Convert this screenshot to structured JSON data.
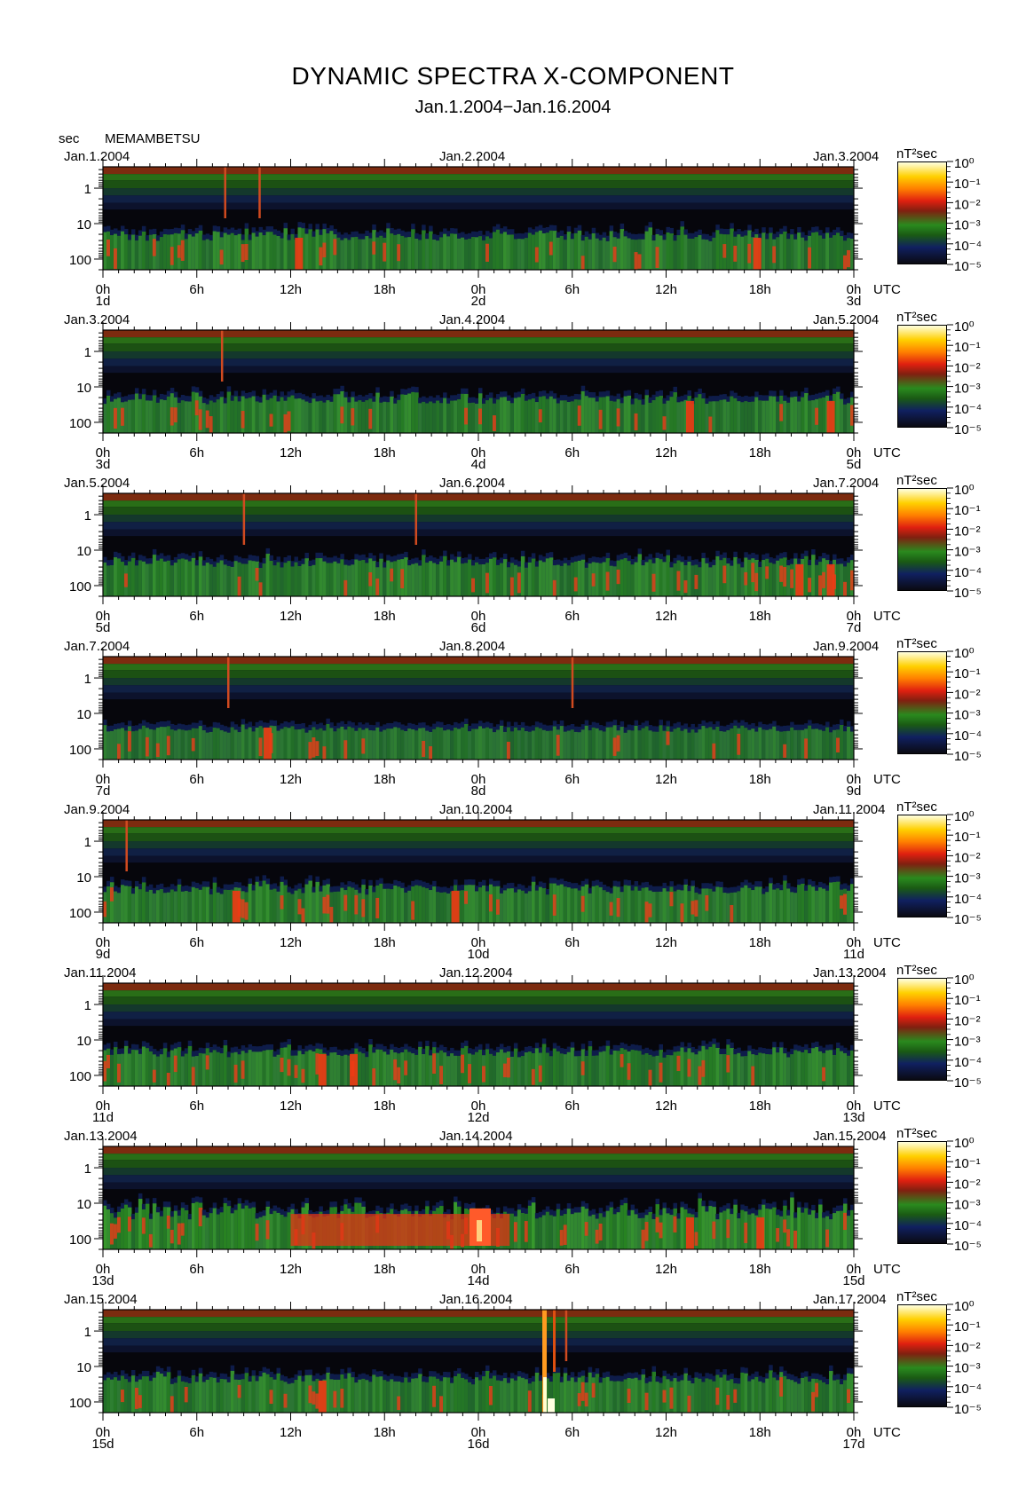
{
  "chart_data": {
    "type": "heatmap",
    "title": "DYNAMIC SPECTRA X-COMPONENT",
    "subtitle": "Jan.1.2004−Jan.16.2004",
    "station": "MEMAMBETSU",
    "y_unit": "sec",
    "x_unit": "UTC",
    "colorbar_unit": "nT²sec",
    "y_scale": "log",
    "y_ticks": [
      "1",
      "10",
      "100"
    ],
    "y_tick_values": [
      1,
      10,
      100
    ],
    "x_tick_labels": [
      "0h",
      "6h",
      "12h",
      "18h",
      "0h",
      "6h",
      "12h",
      "18h",
      "0h"
    ],
    "colorbar_ticks": [
      "10⁰",
      "10⁻¹",
      "10⁻²",
      "10⁻³",
      "10⁻⁴",
      "10⁻⁵"
    ],
    "colorbar_range": [
      1e-05,
      1
    ],
    "colors": [
      "#0a0a12",
      "#142060",
      "#1a6a1a",
      "#3aa82a",
      "#e03010",
      "#ff4020",
      "#ffd000",
      "#ffffe0"
    ],
    "panels": [
      {
        "start_label": "Jan.1.2004",
        "mid_label": "Jan.2.2004",
        "end_label": "Jan.3.2004",
        "day_labels": [
          "1d",
          "2d",
          "3d"
        ],
        "events": [
          {
            "t": 7.8,
            "kind": "spike"
          },
          {
            "t": 10.0,
            "kind": "spike"
          },
          {
            "t": 12.5,
            "kind": "burst"
          },
          {
            "t": 41.8,
            "kind": "burst"
          }
        ],
        "activity": "moderate"
      },
      {
        "start_label": "Jan.3.2004",
        "mid_label": "Jan.4.2004",
        "end_label": "Jan.5.2004",
        "day_labels": [
          "3d",
          "4d",
          "5d"
        ],
        "events": [
          {
            "t": 7.6,
            "kind": "spike"
          },
          {
            "t": 37.5,
            "kind": "burst"
          },
          {
            "t": 46.5,
            "kind": "burst"
          }
        ],
        "activity": "moderate"
      },
      {
        "start_label": "Jan.5.2004",
        "mid_label": "Jan.6.2004",
        "end_label": "Jan.7.2004",
        "day_labels": [
          "5d",
          "6d",
          "7d"
        ],
        "events": [
          {
            "t": 9.0,
            "kind": "spike"
          },
          {
            "t": 20.0,
            "kind": "spike"
          },
          {
            "t": 44.5,
            "kind": "burst"
          },
          {
            "t": 46.5,
            "kind": "burst"
          }
        ],
        "activity": "moderate"
      },
      {
        "start_label": "Jan.7.2004",
        "mid_label": "Jan.8.2004",
        "end_label": "Jan.9.2004",
        "day_labels": [
          "7d",
          "8d",
          "9d"
        ],
        "events": [
          {
            "t": 8.0,
            "kind": "spike"
          },
          {
            "t": 10.5,
            "kind": "burst"
          },
          {
            "t": 30.0,
            "kind": "spike"
          }
        ],
        "activity": "low"
      },
      {
        "start_label": "Jan.9.2004",
        "mid_label": "Jan.10.2004",
        "end_label": "Jan.11.2004",
        "day_labels": [
          "9d",
          "10d",
          "11d"
        ],
        "events": [
          {
            "t": 1.5,
            "kind": "spike"
          },
          {
            "t": 8.5,
            "kind": "burst"
          },
          {
            "t": 22.5,
            "kind": "burst"
          }
        ],
        "activity": "moderate"
      },
      {
        "start_label": "Jan.11.2004",
        "mid_label": "Jan.12.2004",
        "end_label": "Jan.13.2004",
        "day_labels": [
          "11d",
          "12d",
          "13d"
        ],
        "events": [
          {
            "t": 14.0,
            "kind": "burst"
          },
          {
            "t": 16.0,
            "kind": "burst"
          }
        ],
        "activity": "moderate"
      },
      {
        "start_label": "Jan.13.2004",
        "mid_label": "Jan.14.2004",
        "end_label": "Jan.15.2004",
        "day_labels": [
          "13d",
          "14d",
          "15d"
        ],
        "events": [
          {
            "t": 24.0,
            "kind": "storm"
          },
          {
            "t": 37.5,
            "kind": "burst"
          },
          {
            "t": 42.0,
            "kind": "burst"
          }
        ],
        "activity": "high"
      },
      {
        "start_label": "Jan.15.2004",
        "mid_label": "Jan.16.2004",
        "end_label": "Jan.17.2004",
        "day_labels": [
          "15d",
          "16d",
          "17d"
        ],
        "events": [
          {
            "t": 28.2,
            "kind": "sudden-commencement"
          },
          {
            "t": 29.6,
            "kind": "spike"
          },
          {
            "t": 14.0,
            "kind": "burst"
          }
        ],
        "activity": "moderate"
      }
    ]
  }
}
